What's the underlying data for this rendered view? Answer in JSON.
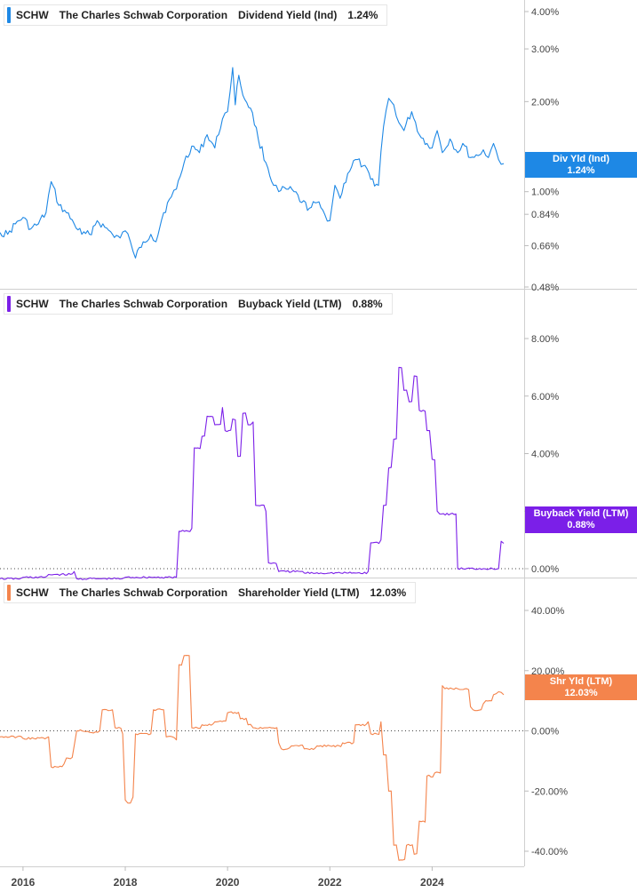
{
  "chart_data": [
    {
      "type": "line",
      "ticker": "SCHW",
      "company": "The Charles Schwab Corporation",
      "metric": "Dividend Yield (Ind)",
      "current": "1.24%",
      "badge_label": "Div Yld (Ind)",
      "color": "#1e88e5",
      "scale": "log",
      "ylim": [
        0.48,
        4.3
      ],
      "y_ticks": [
        4.0,
        3.0,
        2.0,
        1.0,
        0.84,
        0.66,
        0.48
      ],
      "y_tick_labels": [
        "4.00%",
        "3.00%",
        "2.00%",
        "1.00%",
        "0.84%",
        "0.66%",
        "0.48%"
      ],
      "x": [
        2015.55,
        2015.7,
        2015.85,
        2016.0,
        2016.15,
        2016.3,
        2016.45,
        2016.55,
        2016.7,
        2016.85,
        2017.0,
        2017.15,
        2017.3,
        2017.45,
        2017.6,
        2017.75,
        2017.9,
        2018.0,
        2018.1,
        2018.2,
        2018.35,
        2018.5,
        2018.6,
        2018.75,
        2018.9,
        2019.0,
        2019.15,
        2019.3,
        2019.45,
        2019.6,
        2019.75,
        2019.9,
        2020.0,
        2020.1,
        2020.15,
        2020.22,
        2020.3,
        2020.45,
        2020.6,
        2020.75,
        2020.9,
        2021.0,
        2021.15,
        2021.3,
        2021.45,
        2021.6,
        2021.75,
        2021.9,
        2022.0,
        2022.1,
        2022.2,
        2022.35,
        2022.5,
        2022.65,
        2022.8,
        2022.95,
        2023.05,
        2023.15,
        2023.25,
        2023.35,
        2023.45,
        2023.6,
        2023.75,
        2023.9,
        2024.0,
        2024.1,
        2024.2,
        2024.35,
        2024.5,
        2024.6,
        2024.75,
        2024.9,
        2025.0,
        2025.1,
        2025.2,
        2025.3,
        2025.4
      ],
      "values": [
        0.73,
        0.72,
        0.78,
        0.82,
        0.75,
        0.78,
        0.85,
        1.08,
        0.9,
        0.85,
        0.78,
        0.72,
        0.72,
        0.8,
        0.76,
        0.72,
        0.7,
        0.74,
        0.68,
        0.6,
        0.68,
        0.72,
        0.68,
        0.85,
        0.96,
        1.02,
        1.25,
        1.42,
        1.35,
        1.55,
        1.4,
        1.75,
        1.85,
        2.6,
        1.95,
        2.45,
        2.1,
        1.9,
        1.5,
        1.25,
        1.05,
        1.0,
        1.02,
        1.0,
        0.92,
        0.88,
        0.92,
        0.84,
        0.8,
        1.05,
        0.95,
        1.15,
        1.28,
        1.22,
        1.1,
        1.05,
        1.65,
        2.05,
        1.95,
        1.7,
        1.6,
        1.85,
        1.55,
        1.45,
        1.4,
        1.6,
        1.35,
        1.5,
        1.35,
        1.45,
        1.3,
        1.32,
        1.38,
        1.3,
        1.45,
        1.28,
        1.24
      ]
    },
    {
      "type": "line",
      "ticker": "SCHW",
      "company": "The Charles Schwab Corporation",
      "metric": "Buyback Yield (LTM)",
      "current": "0.88%",
      "badge_label": "Buyback Yield (LTM)",
      "color": "#7b1fe8",
      "ylim": [
        -0.6,
        9.0
      ],
      "zero_line": true,
      "y_ticks": [
        8.0,
        6.0,
        4.0,
        2.0,
        0.0
      ],
      "y_tick_labels": [
        "8.00%",
        "6.00%",
        "4.00%",
        "2.00%",
        "0.00%"
      ],
      "x": [
        2015.55,
        2016.0,
        2016.5,
        2017.0,
        2017.05,
        2017.5,
        2018.0,
        2018.5,
        2019.0,
        2019.05,
        2019.3,
        2019.35,
        2019.5,
        2019.6,
        2019.75,
        2019.9,
        2019.95,
        2020.1,
        2020.2,
        2020.3,
        2020.4,
        2020.5,
        2020.55,
        2020.75,
        2020.8,
        2020.9,
        2021.0,
        2021.5,
        2022.0,
        2022.5,
        2022.75,
        2022.8,
        2023.0,
        2023.05,
        2023.15,
        2023.25,
        2023.35,
        2023.45,
        2023.55,
        2023.65,
        2023.75,
        2023.9,
        2024.0,
        2024.1,
        2024.15,
        2024.5,
        2025.0,
        2025.3,
        2025.35,
        2025.4
      ],
      "values": [
        -0.35,
        -0.3,
        -0.2,
        -0.1,
        -0.35,
        -0.35,
        -0.3,
        -0.3,
        -0.3,
        1.3,
        1.4,
        4.2,
        4.6,
        5.3,
        5.0,
        5.6,
        4.8,
        5.2,
        3.9,
        5.4,
        5.0,
        5.1,
        2.2,
        2.0,
        0.2,
        0.2,
        -0.1,
        -0.15,
        -0.15,
        -0.15,
        -0.1,
        0.9,
        1.0,
        2.2,
        3.5,
        4.5,
        7.0,
        6.2,
        5.8,
        6.7,
        5.5,
        4.8,
        3.8,
        2.0,
        1.9,
        0.0,
        0.0,
        0.0,
        0.95,
        0.88
      ]
    },
    {
      "type": "line",
      "ticker": "SCHW",
      "company": "The Charles Schwab Corporation",
      "metric": "Shareholder Yield (LTM)",
      "current": "12.03%",
      "badge_label": "Shr Yld (LTM)",
      "color": "#f4844c",
      "ylim": [
        -46,
        52
      ],
      "zero_line": true,
      "y_ticks": [
        40.0,
        20.0,
        0.0,
        -20.0,
        -40.0
      ],
      "y_tick_labels": [
        "40.00%",
        "20.00%",
        "0.00%",
        "-20.00%",
        "-40.00%"
      ],
      "x": [
        2015.55,
        2016.0,
        2016.5,
        2016.55,
        2016.8,
        2016.85,
        2017.0,
        2017.05,
        2017.3,
        2017.5,
        2017.55,
        2017.75,
        2017.8,
        2017.95,
        2018.0,
        2018.05,
        2018.15,
        2018.2,
        2018.5,
        2018.55,
        2018.75,
        2018.8,
        2019.0,
        2019.05,
        2019.15,
        2019.25,
        2019.3,
        2019.5,
        2019.75,
        2020.0,
        2020.25,
        2020.4,
        2020.5,
        2020.75,
        2021.0,
        2021.05,
        2021.25,
        2021.5,
        2021.75,
        2022.0,
        2022.25,
        2022.5,
        2022.75,
        2022.8,
        2023.0,
        2023.05,
        2023.15,
        2023.25,
        2023.35,
        2023.5,
        2023.65,
        2023.75,
        2023.9,
        2024.05,
        2024.2,
        2024.25,
        2024.5,
        2024.75,
        2024.8,
        2025.0,
        2025.05,
        2025.2,
        2025.3,
        2025.4
      ],
      "values": [
        -2,
        -2.5,
        -2,
        -12,
        -11,
        -9,
        -5,
        0,
        -0.5,
        0,
        7,
        7,
        1,
        -1,
        -23,
        -24,
        -22,
        -1,
        -1,
        7,
        7,
        -2,
        -3,
        22,
        25,
        25,
        1,
        2,
        3,
        6,
        4,
        2,
        1,
        1,
        -4,
        -6,
        -5,
        -6,
        -5,
        -5,
        -4,
        2,
        3,
        -1,
        3,
        -8,
        -20,
        -38,
        -43,
        -38,
        -41,
        -30,
        -15,
        -14,
        15,
        14,
        14,
        8,
        7,
        9,
        10,
        12,
        13,
        12
      ]
    }
  ],
  "x_axis": {
    "labels": [
      "2016",
      "2018",
      "2020",
      "2022",
      "2024"
    ],
    "ticks": [
      2016,
      2018,
      2020,
      2022,
      2024
    ],
    "range": [
      2015.55,
      2025.8
    ]
  }
}
